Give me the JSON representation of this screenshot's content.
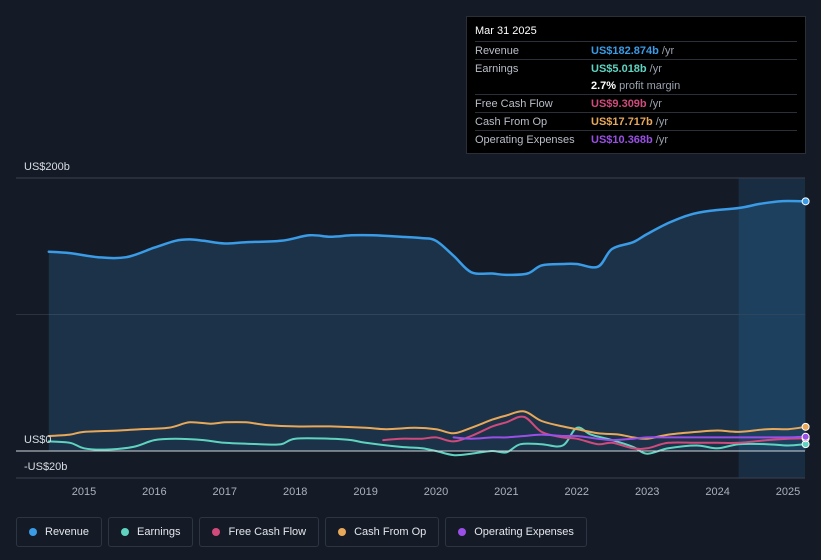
{
  "tooltip": {
    "date": "Mar 31 2025",
    "rows": [
      {
        "label": "Revenue",
        "value": "US$182.874b",
        "unit": "/yr",
        "color": "#3a9be6"
      },
      {
        "label": "Earnings",
        "value": "US$5.018b",
        "unit": "/yr",
        "color": "#5fd3c0"
      },
      {
        "label": "",
        "value": "2.7%",
        "unit": "profit margin",
        "color": "#ffffff"
      },
      {
        "label": "Free Cash Flow",
        "value": "US$9.309b",
        "unit": "/yr",
        "color": "#d04a7c"
      },
      {
        "label": "Cash From Op",
        "value": "US$17.717b",
        "unit": "/yr",
        "color": "#e8a85a"
      },
      {
        "label": "Operating Expenses",
        "value": "US$10.368b",
        "unit": "/yr",
        "color": "#9a4fe6"
      }
    ]
  },
  "legend": [
    {
      "label": "Revenue",
      "color": "#3a9be6"
    },
    {
      "label": "Earnings",
      "color": "#5fd3c0"
    },
    {
      "label": "Free Cash Flow",
      "color": "#d04a7c"
    },
    {
      "label": "Cash From Op",
      "color": "#e8a85a"
    },
    {
      "label": "Operating Expenses",
      "color": "#9a4fe6"
    }
  ],
  "chart_data": {
    "type": "area",
    "title": "",
    "y_tick_labels": {
      "top": "US$200b",
      "zero": "US$0",
      "bottom": "-US$20b"
    },
    "ylim": [
      -20,
      200
    ],
    "x_ticks": [
      "2015",
      "2016",
      "2017",
      "2018",
      "2019",
      "2020",
      "2021",
      "2022",
      "2023",
      "2024",
      "2025"
    ],
    "forecast_shade_from": 2024.3,
    "series": [
      {
        "name": "Revenue",
        "color": "#3a9be6",
        "fill": true,
        "points": [
          [
            2014.5,
            146
          ],
          [
            2014.8,
            145
          ],
          [
            2015.2,
            142
          ],
          [
            2015.6,
            142
          ],
          [
            2016.0,
            149
          ],
          [
            2016.3,
            154
          ],
          [
            2016.5,
            155
          ],
          [
            2016.7,
            154
          ],
          [
            2017.0,
            152
          ],
          [
            2017.3,
            153
          ],
          [
            2017.8,
            154
          ],
          [
            2018.2,
            158
          ],
          [
            2018.5,
            157
          ],
          [
            2018.8,
            158
          ],
          [
            2019.1,
            158
          ],
          [
            2019.5,
            157
          ],
          [
            2019.8,
            156
          ],
          [
            2020.0,
            154
          ],
          [
            2020.25,
            143
          ],
          [
            2020.5,
            131
          ],
          [
            2020.8,
            130
          ],
          [
            2021.0,
            129
          ],
          [
            2021.3,
            130
          ],
          [
            2021.5,
            136
          ],
          [
            2021.8,
            137
          ],
          [
            2022.0,
            137
          ],
          [
            2022.3,
            135
          ],
          [
            2022.5,
            148
          ],
          [
            2022.8,
            153
          ],
          [
            2023.0,
            159
          ],
          [
            2023.3,
            167
          ],
          [
            2023.6,
            173
          ],
          [
            2023.9,
            176
          ],
          [
            2024.3,
            178
          ],
          [
            2024.6,
            181
          ],
          [
            2024.9,
            183
          ],
          [
            2025.25,
            182.9
          ]
        ]
      },
      {
        "name": "Earnings",
        "color": "#5fd3c0",
        "fill": false,
        "points": [
          [
            2014.5,
            7
          ],
          [
            2014.8,
            6
          ],
          [
            2015.0,
            2
          ],
          [
            2015.3,
            1
          ],
          [
            2015.7,
            3
          ],
          [
            2016.0,
            8
          ],
          [
            2016.3,
            9
          ],
          [
            2016.7,
            8
          ],
          [
            2017.0,
            6
          ],
          [
            2017.5,
            5
          ],
          [
            2017.8,
            5
          ],
          [
            2018.0,
            9
          ],
          [
            2018.5,
            9
          ],
          [
            2018.8,
            8
          ],
          [
            2019.0,
            6
          ],
          [
            2019.5,
            3
          ],
          [
            2019.8,
            2
          ],
          [
            2020.0,
            0
          ],
          [
            2020.25,
            -3
          ],
          [
            2020.5,
            -2
          ],
          [
            2020.8,
            0
          ],
          [
            2021.0,
            -1
          ],
          [
            2021.2,
            5
          ],
          [
            2021.5,
            5
          ],
          [
            2021.8,
            4
          ],
          [
            2022.0,
            17
          ],
          [
            2022.2,
            12
          ],
          [
            2022.5,
            8
          ],
          [
            2022.8,
            3
          ],
          [
            2023.0,
            -2
          ],
          [
            2023.3,
            2
          ],
          [
            2023.7,
            4
          ],
          [
            2024.0,
            2
          ],
          [
            2024.3,
            5
          ],
          [
            2024.7,
            5
          ],
          [
            2025.0,
            4
          ],
          [
            2025.25,
            5.0
          ]
        ]
      },
      {
        "name": "Free Cash Flow",
        "color": "#d04a7c",
        "fill": false,
        "points": [
          [
            2019.25,
            8
          ],
          [
            2019.5,
            9
          ],
          [
            2019.8,
            9
          ],
          [
            2020.0,
            10
          ],
          [
            2020.25,
            7
          ],
          [
            2020.5,
            11
          ],
          [
            2020.8,
            18
          ],
          [
            2021.0,
            21
          ],
          [
            2021.25,
            25
          ],
          [
            2021.5,
            14
          ],
          [
            2021.8,
            10
          ],
          [
            2022.0,
            9
          ],
          [
            2022.3,
            5
          ],
          [
            2022.5,
            6
          ],
          [
            2022.8,
            2
          ],
          [
            2023.0,
            2
          ],
          [
            2023.3,
            6
          ],
          [
            2023.7,
            6
          ],
          [
            2024.0,
            6
          ],
          [
            2024.3,
            6
          ],
          [
            2024.7,
            8
          ],
          [
            2025.0,
            9
          ],
          [
            2025.25,
            9.3
          ]
        ]
      },
      {
        "name": "Cash From Op",
        "color": "#e8a85a",
        "fill": false,
        "points": [
          [
            2014.5,
            11
          ],
          [
            2014.8,
            12
          ],
          [
            2015.0,
            14
          ],
          [
            2015.5,
            15
          ],
          [
            2015.8,
            16
          ],
          [
            2016.2,
            17
          ],
          [
            2016.5,
            21
          ],
          [
            2016.8,
            20
          ],
          [
            2017.0,
            21
          ],
          [
            2017.3,
            21
          ],
          [
            2017.6,
            19
          ],
          [
            2018.0,
            18
          ],
          [
            2018.5,
            18
          ],
          [
            2019.0,
            17
          ],
          [
            2019.3,
            16
          ],
          [
            2019.7,
            17
          ],
          [
            2020.0,
            16
          ],
          [
            2020.25,
            13
          ],
          [
            2020.5,
            17
          ],
          [
            2020.8,
            23
          ],
          [
            2021.0,
            26
          ],
          [
            2021.25,
            29
          ],
          [
            2021.5,
            22
          ],
          [
            2021.8,
            18
          ],
          [
            2022.0,
            16
          ],
          [
            2022.3,
            13
          ],
          [
            2022.6,
            12
          ],
          [
            2022.8,
            10
          ],
          [
            2023.0,
            9
          ],
          [
            2023.3,
            12
          ],
          [
            2023.7,
            14
          ],
          [
            2024.0,
            15
          ],
          [
            2024.3,
            14
          ],
          [
            2024.7,
            16
          ],
          [
            2025.0,
            16
          ],
          [
            2025.25,
            17.7
          ]
        ]
      },
      {
        "name": "Operating Expenses",
        "color": "#9a4fe6",
        "fill": false,
        "points": [
          [
            2020.25,
            10
          ],
          [
            2020.5,
            9
          ],
          [
            2020.8,
            10
          ],
          [
            2021.0,
            10
          ],
          [
            2021.25,
            11
          ],
          [
            2021.5,
            12
          ],
          [
            2021.8,
            11
          ],
          [
            2022.0,
            11
          ],
          [
            2022.3,
            9
          ],
          [
            2022.5,
            8
          ],
          [
            2022.8,
            9
          ],
          [
            2023.0,
            10
          ],
          [
            2023.3,
            10
          ],
          [
            2023.7,
            10
          ],
          [
            2024.0,
            10
          ],
          [
            2024.3,
            10
          ],
          [
            2024.7,
            10
          ],
          [
            2025.0,
            10
          ],
          [
            2025.25,
            10.4
          ]
        ]
      }
    ]
  }
}
